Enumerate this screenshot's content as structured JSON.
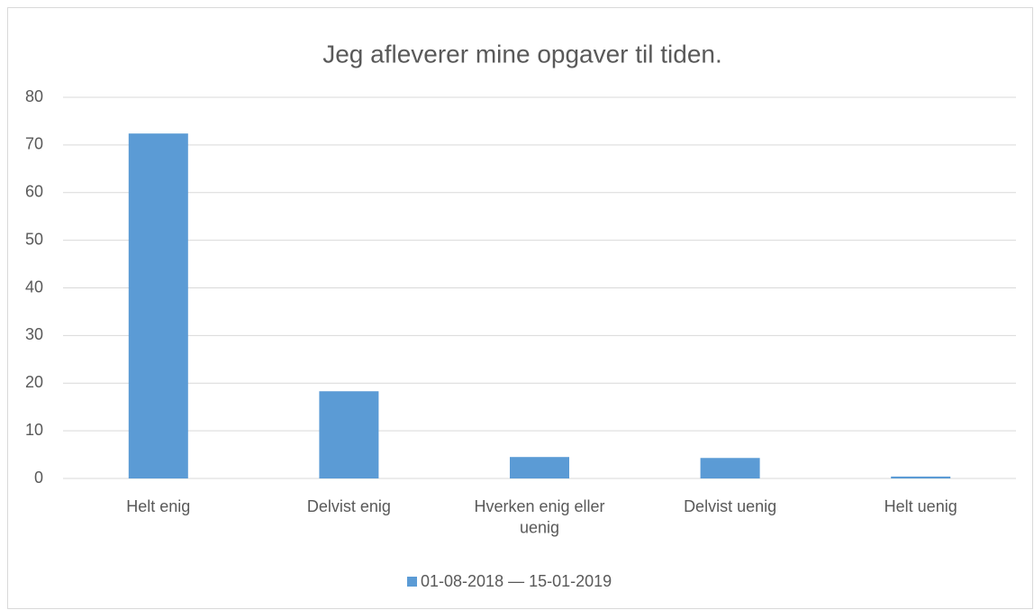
{
  "chart_data": {
    "type": "bar",
    "title": "Jeg afleverer mine opgaver til tiden.",
    "categories": [
      "Helt enig",
      "Delvist enig",
      "Hverken enig eller uenig",
      "Delvist uenig",
      "Helt uenig"
    ],
    "series": [
      {
        "name": "01-08-2018 — 15-01-2019",
        "color": "#5b9bd5",
        "values": [
          72.4,
          18.3,
          4.5,
          4.3,
          0.4
        ]
      }
    ],
    "ylim": [
      0,
      80
    ],
    "yticks": [
      0,
      10,
      20,
      30,
      40,
      50,
      60,
      70,
      80
    ],
    "grid": true,
    "legend": "bottom"
  }
}
